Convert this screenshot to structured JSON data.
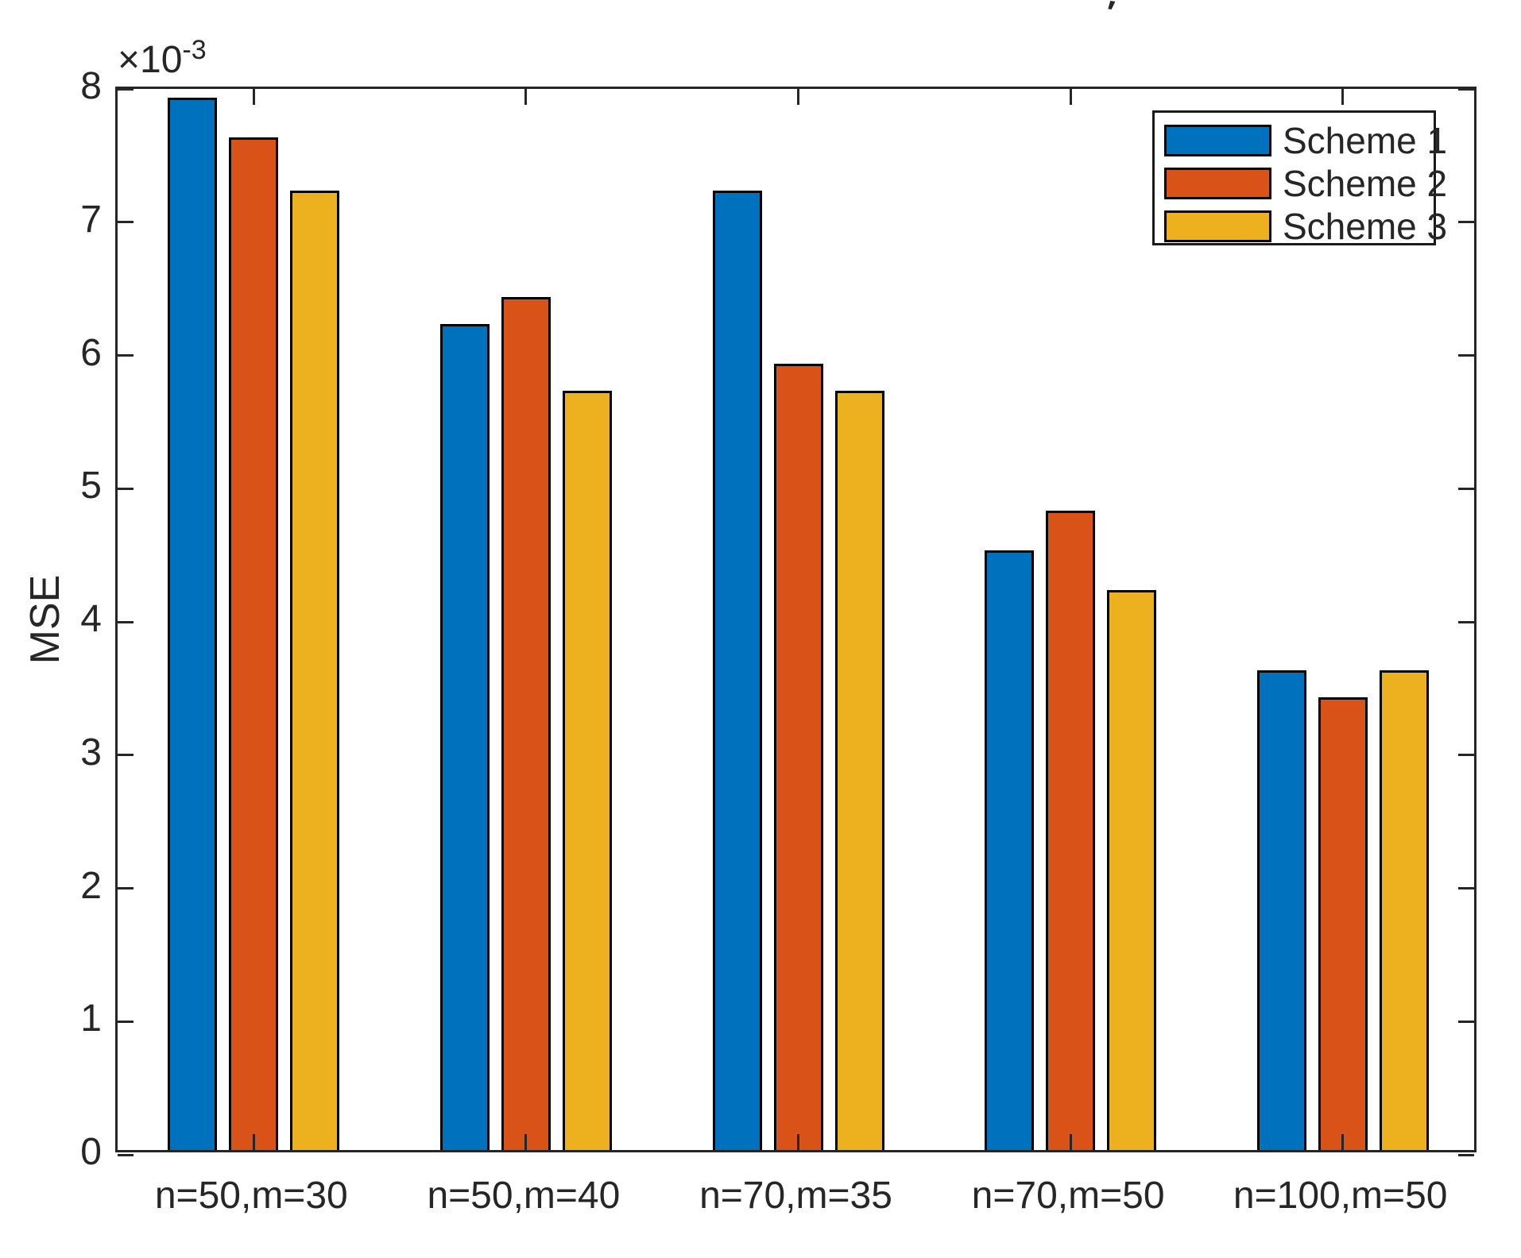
{
  "figure": {
    "background": "#ffffff",
    "axis_color": "#262626",
    "bar_edge_color": "#000000",
    "stray_mark": "′"
  },
  "chart_data": {
    "type": "bar",
    "title": "",
    "xlabel": "",
    "ylabel": "MSE",
    "y_scale_base": "×10",
    "y_scale_exponent": "-3",
    "ylim": [
      0,
      8
    ],
    "yticks": [
      0,
      1,
      2,
      3,
      4,
      5,
      6,
      7,
      8
    ],
    "grid": false,
    "legend_position": "northeast",
    "categories": [
      "n=50,m=30",
      "n=50,m=40",
      "n=70,m=35",
      "n=70,m=50",
      "n=100,m=50"
    ],
    "series": [
      {
        "name": "Scheme 1",
        "color": "#0072BD",
        "values": [
          7.9,
          6.2,
          7.2,
          4.5,
          3.6
        ]
      },
      {
        "name": "Scheme 2",
        "color": "#D95319",
        "values": [
          7.6,
          6.4,
          5.9,
          4.8,
          3.4
        ]
      },
      {
        "name": "Scheme 3",
        "color": "#EDB120",
        "values": [
          7.2,
          5.7,
          5.7,
          4.2,
          3.6
        ]
      }
    ]
  }
}
